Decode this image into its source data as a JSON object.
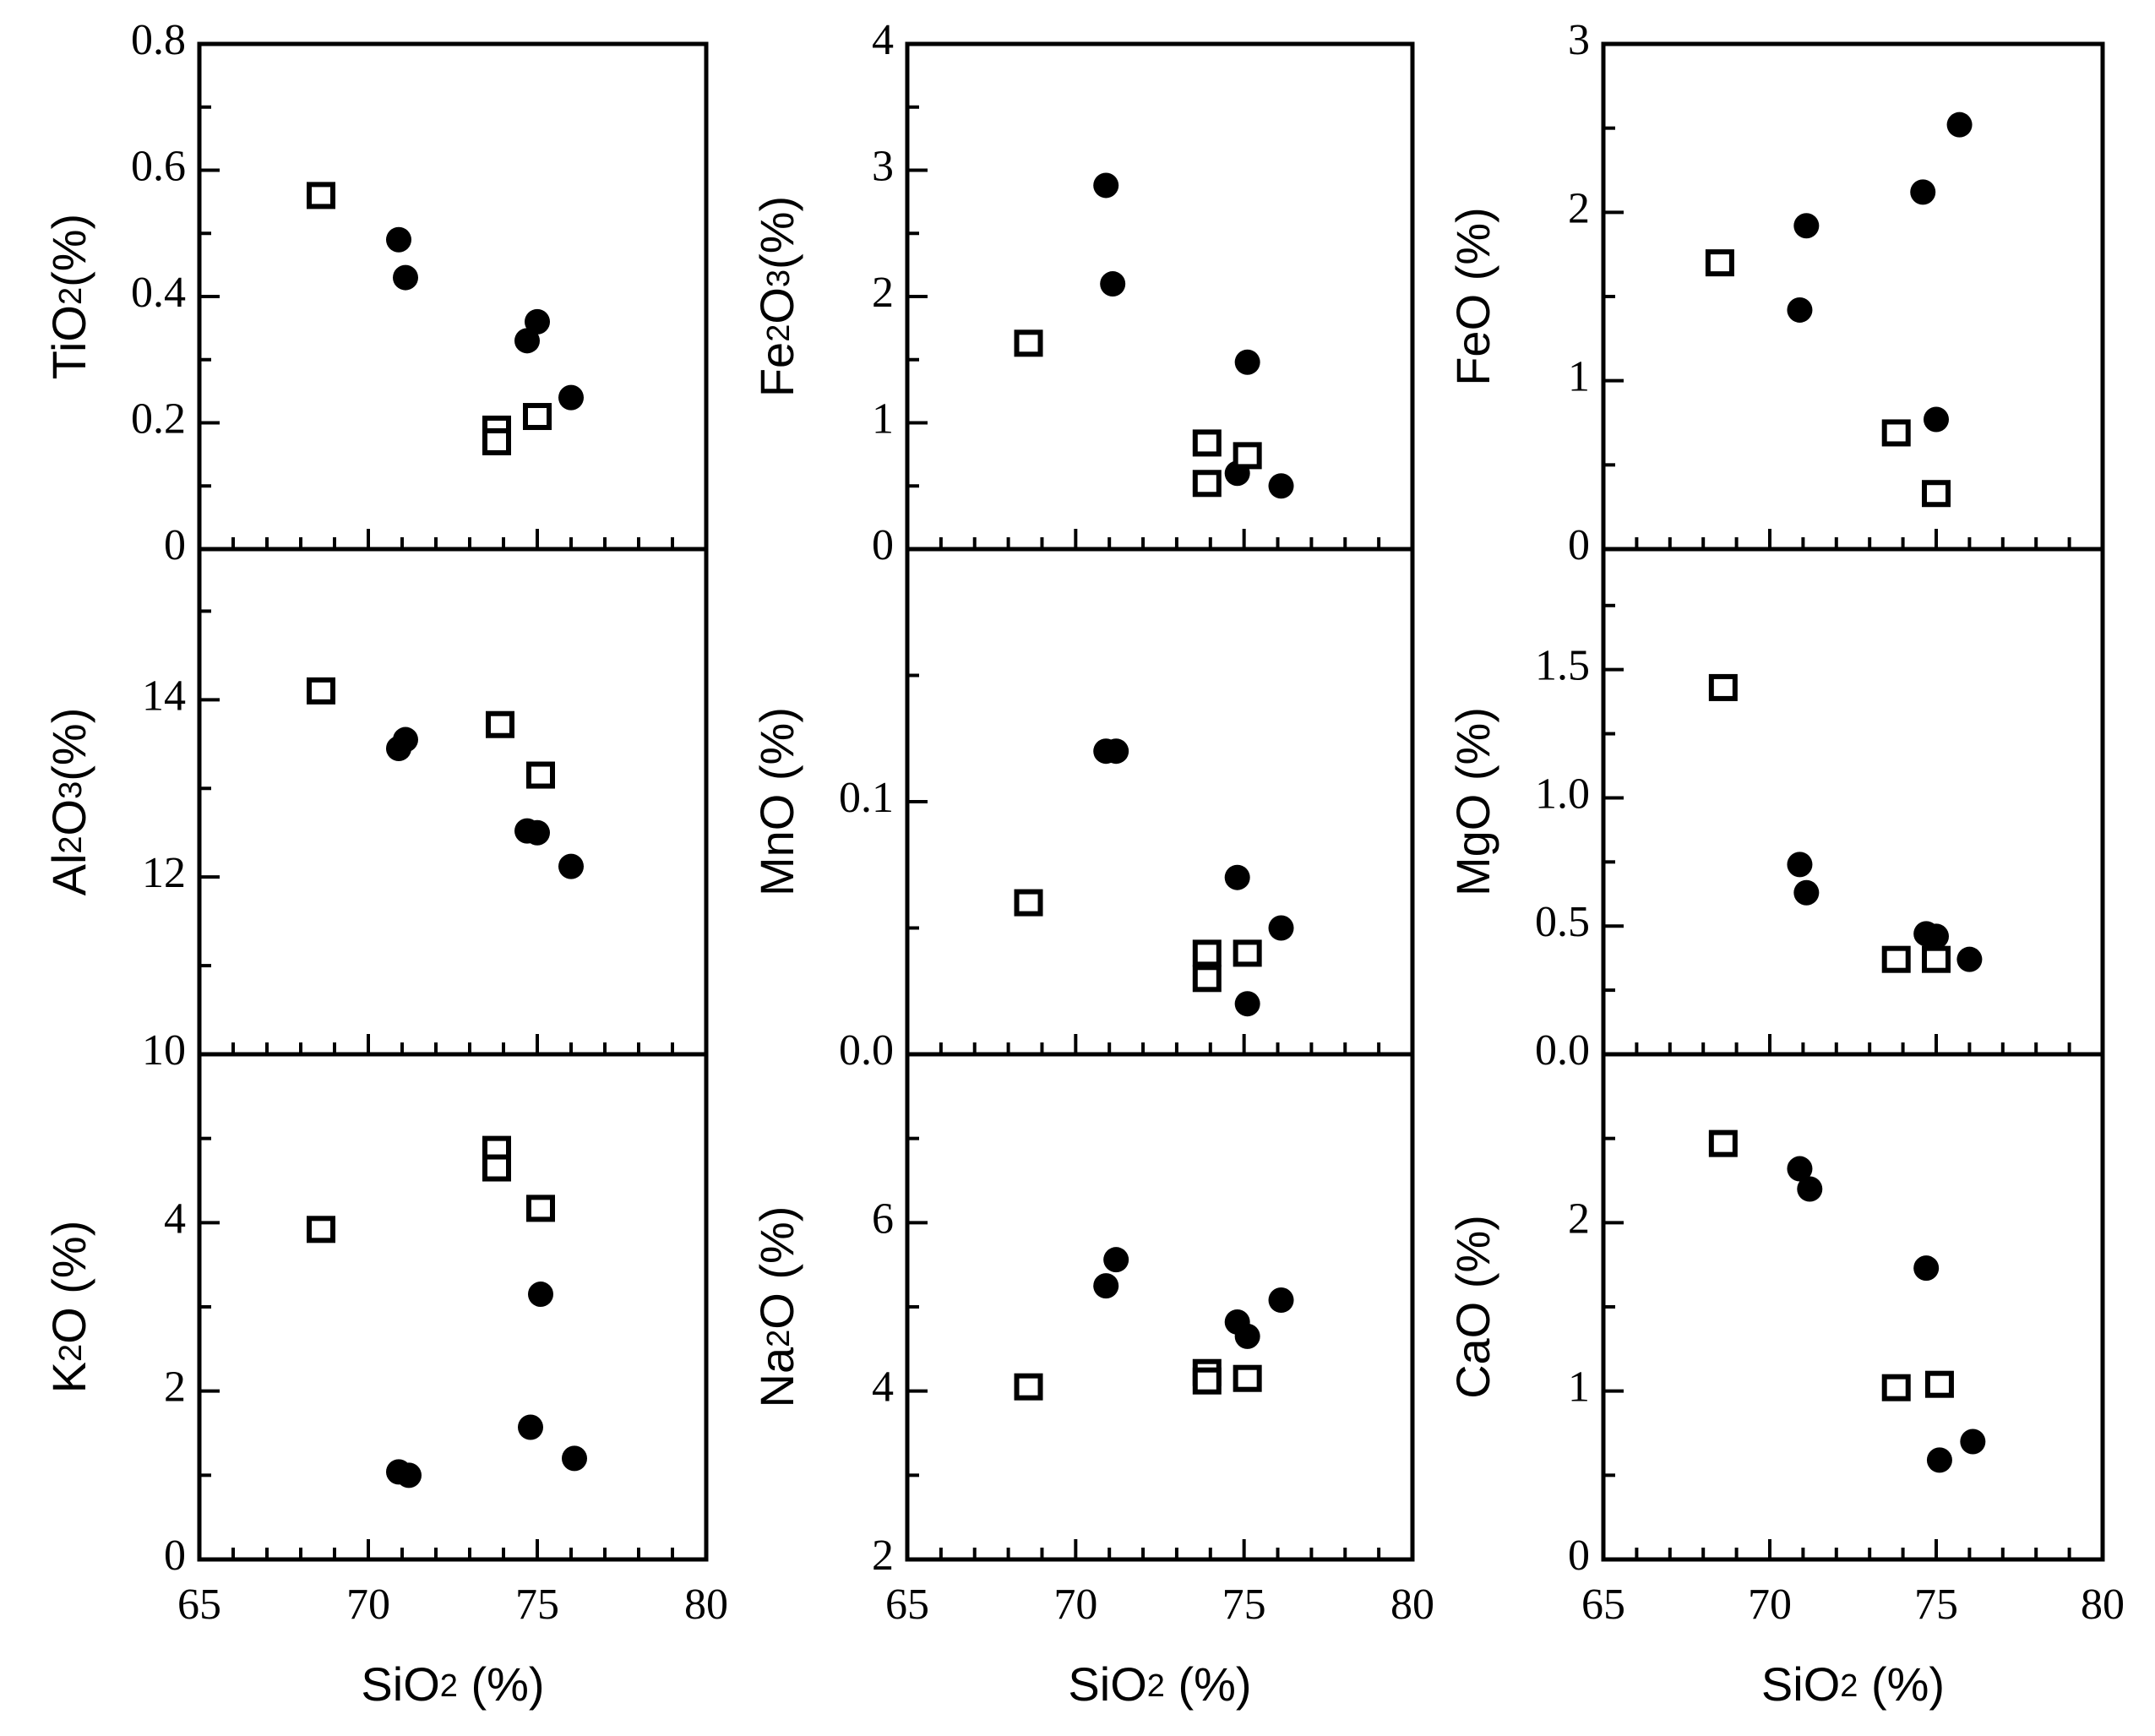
{
  "chart_data": [
    {
      "id": "tio2",
      "type": "scatter",
      "ylabel": "TiO₂(%)",
      "xlabel": "",
      "xlim": [
        65,
        80
      ],
      "ylim": [
        0,
        0.8
      ],
      "yticks": [
        0,
        0.2,
        0.4,
        0.6,
        0.8
      ],
      "ytick_labels": [
        "0",
        "0.2",
        "0.4",
        "0.6",
        "0.8"
      ],
      "xtick_labels": [],
      "series": [
        {
          "name": "circles",
          "marker": "circle",
          "x": [
            70.9,
            71.1,
            74.7,
            75.0,
            76.0
          ],
          "y": [
            0.49,
            0.43,
            0.33,
            0.36,
            0.24
          ]
        },
        {
          "name": "squares",
          "marker": "square",
          "x": [
            68.6,
            73.8,
            73.8,
            75.0
          ],
          "y": [
            0.56,
            0.19,
            0.17,
            0.21
          ]
        }
      ]
    },
    {
      "id": "fe2o3",
      "type": "scatter",
      "ylabel": "Fe₂O₃(%)",
      "xlabel": "",
      "xlim": [
        65,
        80
      ],
      "ylim": [
        0,
        4
      ],
      "yticks": [
        0,
        1,
        2,
        3,
        4
      ],
      "ytick_labels": [
        "0",
        "1",
        "2",
        "3",
        "4"
      ],
      "xtick_labels": [],
      "series": [
        {
          "name": "circles",
          "marker": "circle",
          "x": [
            70.9,
            71.1,
            75.1,
            74.8,
            76.1
          ],
          "y": [
            2.88,
            2.1,
            1.48,
            0.6,
            0.5
          ]
        },
        {
          "name": "squares",
          "marker": "square",
          "x": [
            68.6,
            73.9,
            73.9,
            75.1
          ],
          "y": [
            1.63,
            0.84,
            0.52,
            0.74
          ]
        }
      ]
    },
    {
      "id": "feo",
      "type": "scatter",
      "ylabel": "FeO (%)",
      "xlabel": "",
      "xlim": [
        65,
        80
      ],
      "ylim": [
        0,
        3
      ],
      "yticks": [
        0,
        1,
        2,
        3
      ],
      "ytick_labels": [
        "0",
        "1",
        "2",
        "3"
      ],
      "xtick_labels": [],
      "series": [
        {
          "name": "circles",
          "marker": "circle",
          "x": [
            70.9,
            71.1,
            74.6,
            75.7,
            75.0
          ],
          "y": [
            1.42,
            1.92,
            2.12,
            2.52,
            0.77
          ]
        },
        {
          "name": "squares",
          "marker": "square",
          "x": [
            68.5,
            73.8,
            75.0
          ],
          "y": [
            1.7,
            0.69,
            0.33
          ]
        }
      ]
    },
    {
      "id": "al2o3",
      "type": "scatter",
      "ylabel": "Al₂O₃(%)",
      "xlabel": "",
      "xlim": [
        65,
        80
      ],
      "ylim": [
        10,
        15.7
      ],
      "yticks": [
        10,
        12,
        14
      ],
      "ytick_labels": [
        "10",
        "12",
        "14"
      ],
      "xtick_labels": [],
      "series": [
        {
          "name": "circles",
          "marker": "circle",
          "x": [
            70.9,
            71.1,
            74.7,
            75.0,
            76.0
          ],
          "y": [
            13.45,
            13.55,
            12.52,
            12.5,
            12.12
          ]
        },
        {
          "name": "squares",
          "marker": "square",
          "x": [
            68.6,
            73.9,
            75.1
          ],
          "y": [
            14.1,
            13.72,
            13.15
          ]
        }
      ]
    },
    {
      "id": "mno",
      "type": "scatter",
      "ylabel": "MnO (%)",
      "xlabel": "",
      "xlim": [
        65,
        80
      ],
      "ylim": [
        0,
        0.2
      ],
      "yticks": [
        0,
        0.1
      ],
      "ytick_labels": [
        "0.0",
        "0.1"
      ],
      "xtick_labels": [],
      "series": [
        {
          "name": "circles",
          "marker": "circle",
          "x": [
            70.9,
            71.2,
            74.8,
            76.1,
            75.1
          ],
          "y": [
            0.12,
            0.12,
            0.07,
            0.05,
            0.02
          ]
        },
        {
          "name": "squares",
          "marker": "square",
          "x": [
            68.6,
            73.9,
            73.9,
            75.1
          ],
          "y": [
            0.06,
            0.04,
            0.03,
            0.04
          ]
        }
      ]
    },
    {
      "id": "mgo",
      "type": "scatter",
      "ylabel": "MgO (%)",
      "xlabel": "",
      "xlim": [
        65,
        80
      ],
      "ylim": [
        0,
        1.97
      ],
      "yticks": [
        0,
        0.5,
        1.0,
        1.5
      ],
      "ytick_labels": [
        "0.0",
        "0.5",
        "1.0",
        "1.5"
      ],
      "xtick_labels": [],
      "series": [
        {
          "name": "circles",
          "marker": "circle",
          "x": [
            70.9,
            71.1,
            74.7,
            75.0,
            76.0
          ],
          "y": [
            0.74,
            0.63,
            0.47,
            0.46,
            0.37
          ]
        },
        {
          "name": "squares",
          "marker": "square",
          "x": [
            68.6,
            73.8,
            75.0
          ],
          "y": [
            1.43,
            0.37,
            0.37
          ]
        }
      ]
    },
    {
      "id": "k2o",
      "type": "scatter",
      "ylabel": "K₂O (%)",
      "xlabel": "SiO₂ (%)",
      "xlim": [
        65,
        80
      ],
      "ylim": [
        0,
        6
      ],
      "yticks": [
        0,
        2,
        4
      ],
      "ytick_labels": [
        "0",
        "2",
        "4"
      ],
      "xtick_labels": [
        "65",
        "70",
        "75",
        "80"
      ],
      "series": [
        {
          "name": "circles",
          "marker": "circle",
          "x": [
            70.9,
            71.2,
            75.1,
            74.8,
            76.1
          ],
          "y": [
            1.04,
            1.0,
            3.15,
            1.57,
            1.2
          ]
        },
        {
          "name": "squares",
          "marker": "square",
          "x": [
            68.6,
            73.8,
            73.8,
            75.1
          ],
          "y": [
            3.92,
            4.87,
            4.65,
            4.17
          ]
        }
      ]
    },
    {
      "id": "na2o",
      "type": "scatter",
      "ylabel": "Na₂O (%)",
      "xlabel": "SiO₂ (%)",
      "xlim": [
        65,
        80
      ],
      "ylim": [
        2,
        8
      ],
      "yticks": [
        2,
        4,
        6
      ],
      "ytick_labels": [
        "2",
        "4",
        "6"
      ],
      "xtick_labels": [
        "65",
        "70",
        "75",
        "80"
      ],
      "series": [
        {
          "name": "circles",
          "marker": "circle",
          "x": [
            70.9,
            71.2,
            74.8,
            75.1,
            76.1
          ],
          "y": [
            5.25,
            5.56,
            4.82,
            4.65,
            5.08
          ]
        },
        {
          "name": "squares",
          "marker": "square",
          "x": [
            68.6,
            73.9,
            73.9,
            75.1
          ],
          "y": [
            4.05,
            4.22,
            4.12,
            4.15
          ]
        }
      ]
    },
    {
      "id": "cao",
      "type": "scatter",
      "ylabel": "CaO (%)",
      "xlabel": "SiO₂ (%)",
      "xlim": [
        65,
        80
      ],
      "ylim": [
        0,
        3
      ],
      "yticks": [
        0,
        1,
        2
      ],
      "ytick_labels": [
        "0",
        "1",
        "2"
      ],
      "xtick_labels": [
        "65",
        "70",
        "75",
        "80"
      ],
      "series": [
        {
          "name": "circles",
          "marker": "circle",
          "x": [
            70.9,
            71.2,
            74.7,
            75.1,
            76.1
          ],
          "y": [
            2.32,
            2.2,
            1.73,
            0.59,
            0.7
          ]
        },
        {
          "name": "squares",
          "marker": "square",
          "x": [
            68.6,
            73.8,
            75.1
          ],
          "y": [
            2.47,
            1.02,
            1.04
          ]
        }
      ]
    }
  ]
}
